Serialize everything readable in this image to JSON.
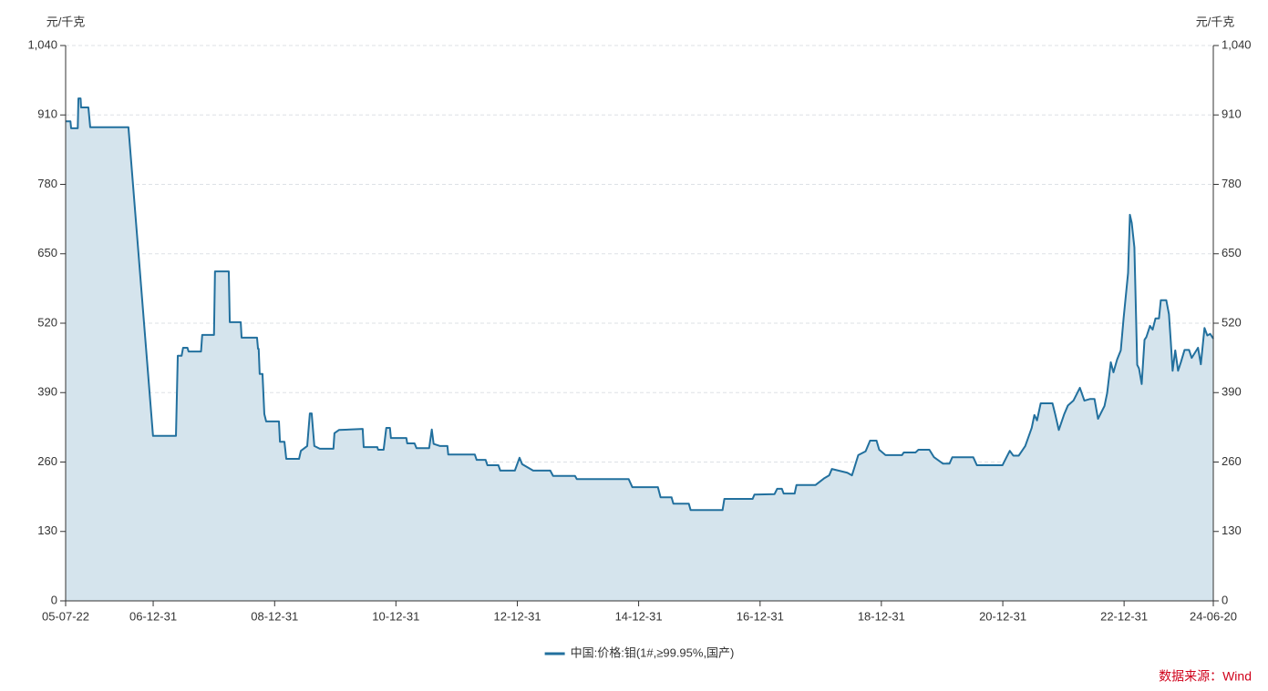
{
  "chart_data": {
    "type": "area",
    "y_label": "元/千克",
    "y2_label": "元/千克",
    "source": "数据来源：Wind",
    "grid": true,
    "legend": "bottom",
    "ylim": [
      0,
      1040
    ],
    "yticks": [
      0,
      130,
      260,
      390,
      520,
      650,
      780,
      910,
      {
        "value": 1040,
        "label": "1,040"
      }
    ],
    "y2lim": [
      0,
      1040
    ],
    "y2ticks": [
      0,
      130,
      260,
      390,
      520,
      650,
      780,
      910,
      {
        "value": 1040,
        "label": "1,040"
      }
    ],
    "xlim": [
      "05-07-22",
      "24-06-20"
    ],
    "xticks": [
      "05-07-22",
      "06-12-31",
      "08-12-31",
      "10-12-31",
      "12-12-31",
      "14-12-31",
      "16-12-31",
      "18-12-31",
      "20-12-31",
      "22-12-31",
      "24-06-20"
    ],
    "x": [
      "05-07-22",
      "05-08-20",
      "05-08-24",
      "05-10-03",
      "05-10-07",
      "05-10-20",
      "05-10-23",
      "05-12-06",
      "05-12-17",
      "06-08-04",
      "06-12-30",
      "07-05-17",
      "07-05-28",
      "07-06-20",
      "07-06-29",
      "07-07-25",
      "07-08-01",
      "07-10-15",
      "07-10-22",
      "08-01-01",
      "08-01-07",
      "08-03-30",
      "08-04-05",
      "08-06-10",
      "08-06-15",
      "08-09-16",
      "08-09-22",
      "08-09-26",
      "08-10-02",
      "08-10-19",
      "08-10-30",
      "08-11-10",
      "09-01-26",
      "09-02-01",
      "09-02-28",
      "09-03-11",
      "09-05-27",
      "09-06-07",
      "09-07-15",
      "09-07-31",
      "09-08-11",
      "09-08-27",
      "09-09-29",
      "09-12-20",
      "09-12-26",
      "10-01-22",
      "10-06-14",
      "10-06-20",
      "10-09-10",
      "10-09-15",
      "10-10-18",
      "10-11-03",
      "10-11-25",
      "10-12-01",
      "11-03-04",
      "11-03-09",
      "11-04-22",
      "11-05-04",
      "11-07-19",
      "11-08-04",
      "11-08-15",
      "11-09-23",
      "11-11-06",
      "11-11-11",
      "12-04-19",
      "12-04-30",
      "12-06-23",
      "12-07-04",
      "12-09-08",
      "12-09-19",
      "12-12-16",
      "13-01-13",
      "13-01-29",
      "13-04-05",
      "13-07-17",
      "13-08-03",
      "13-12-13",
      "13-12-24",
      "14-11-01",
      "14-11-23",
      "15-04-26",
      "15-05-12",
      "15-07-17",
      "15-07-28",
      "15-10-29",
      "15-11-09",
      "16-05-19",
      "16-05-30",
      "16-11-16",
      "16-11-27",
      "17-03-28",
      "17-04-13",
      "17-05-11",
      "17-05-22",
      "17-07-27",
      "17-08-07",
      "17-11-30",
      "18-01-23",
      "18-02-20",
      "18-03-08",
      "18-06-09",
      "18-07-07",
      "18-08-14",
      "18-09-27",
      "18-10-24",
      "18-12-02",
      "18-12-18",
      "19-01-25",
      "19-05-04",
      "19-05-15",
      "19-07-25",
      "19-08-11",
      "19-10-16",
      "19-11-13",
      "20-01-06",
      "20-02-14",
      "20-03-02",
      "20-07-06",
      "20-07-28",
      "20-12-29",
      "21-01-14",
      "21-02-11",
      "21-03-04",
      "21-04-06",
      "21-05-15",
      "21-06-23",
      "21-07-09",
      "21-07-25",
      "21-08-16",
      "21-10-26",
      "21-11-11",
      "21-12-03",
      "22-01-05",
      "22-01-27",
      "22-03-01",
      "22-04-09",
      "22-05-06",
      "22-06-08",
      "22-07-06",
      "22-07-27",
      "22-09-04",
      "22-09-20",
      "22-10-12",
      "22-10-28",
      "22-11-19",
      "22-12-11",
      "22-12-28",
      "23-01-24",
      "23-02-04",
      "23-02-15",
      "23-03-03",
      "23-03-20",
      "23-03-31",
      "23-04-16",
      "23-05-03",
      "23-05-14",
      "23-06-05",
      "23-06-21",
      "23-07-08",
      "23-07-29",
      "23-08-09",
      "23-09-11",
      "23-09-27",
      "23-10-08",
      "23-10-19",
      "23-11-04",
      "23-11-21",
      "23-12-08",
      "23-12-30",
      "24-01-26",
      "24-02-11",
      "24-03-20",
      "24-04-06",
      "24-04-28",
      "24-05-15",
      "24-06-01",
      "24-06-20"
    ],
    "series": [
      {
        "name": "中国:价格:钼(1#,≥99.95%,国产)",
        "color": "#22709e",
        "fill_color": "#d5e4ed",
        "values": [
          898,
          898,
          885,
          885,
          941,
          941,
          924,
          924,
          887,
          887,
          309,
          309,
          459,
          459,
          474,
          474,
          467,
          467,
          498,
          498,
          617,
          617,
          522,
          522,
          493,
          493,
          472,
          472,
          425,
          425,
          350,
          336,
          336,
          298,
          298,
          266,
          266,
          281,
          290,
          351,
          351,
          290,
          285,
          285,
          314,
          320,
          322,
          288,
          288,
          283,
          283,
          324,
          324,
          305,
          305,
          295,
          295,
          286,
          286,
          321,
          294,
          290,
          290,
          274,
          274,
          264,
          264,
          254,
          254,
          244,
          244,
          268,
          256,
          244,
          244,
          234,
          234,
          228,
          228,
          213,
          213,
          194,
          194,
          182,
          182,
          170,
          170,
          191,
          191,
          199,
          200,
          210,
          210,
          201,
          201,
          217,
          217,
          230,
          235,
          247,
          240,
          235,
          273,
          280,
          300,
          300,
          283,
          273,
          273,
          278,
          278,
          283,
          283,
          269,
          257,
          257,
          269,
          269,
          254,
          254,
          264,
          281,
          272,
          272,
          290,
          324,
          348,
          338,
          370,
          370,
          350,
          320,
          350,
          366,
          375,
          399,
          375,
          378,
          378,
          341,
          365,
          389,
          447,
          428,
          452,
          469,
          529,
          614,
          723,
          708,
          662,
          442,
          435,
          406,
          489,
          494,
          515,
          508,
          529,
          529,
          563,
          563,
          537,
          486,
          431,
          469,
          431,
          447,
          470,
          470,
          455,
          474,
          443,
          511,
          497,
          500,
          491
        ]
      }
    ]
  }
}
